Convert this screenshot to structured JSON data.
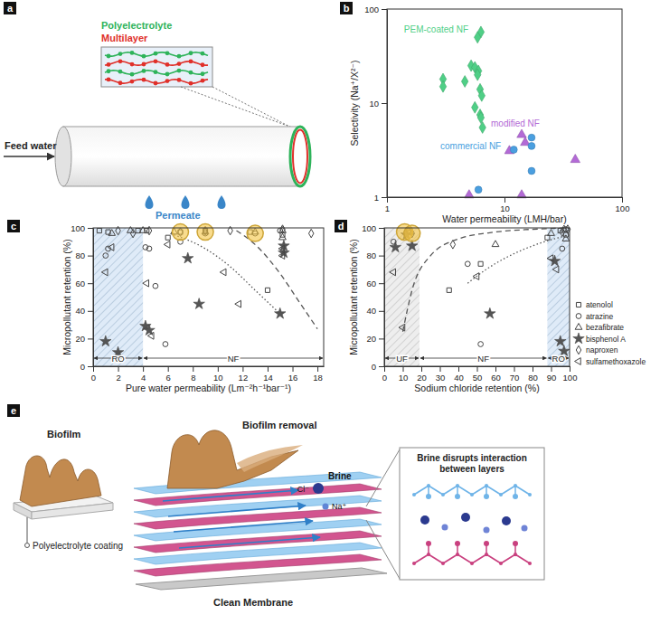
{
  "diagrams": {
    "a": {
      "label": "a",
      "inset": [
        "Polyelectrolyte",
        "Multilayer"
      ],
      "feed": "Feed water",
      "permeate": "Permeate"
    },
    "e": {
      "label": "e",
      "biofilm": "Biofilm",
      "coating": "Polyelectrolyte coating",
      "removal": "Biofilm removal",
      "brine": "Brine",
      "chloride": "Cl⁻",
      "sodium": "Na⁺",
      "clean": "Clean Membrane",
      "box_title": [
        "Brine disrupts interaction",
        "between layers"
      ]
    }
  },
  "chart_data": [
    {
      "panel_label": "b",
      "type": "scatter",
      "log": true,
      "x_label": "Water permeability (LMH/bar)",
      "y_label": "Selectivity (Na⁺/X²⁻)",
      "xlim": [
        1,
        100
      ],
      "ylim": [
        1,
        100
      ],
      "xticks": [
        1,
        10,
        100
      ],
      "yticks": [
        1,
        10,
        100
      ],
      "series": [
        {
          "name": "PEM-coated NF",
          "color": "#4fcf86",
          "marker": "diamond",
          "x": [
            6.3,
            5.9,
            5.2,
            5.6,
            6.0,
            3.0,
            3.0,
            4.6,
            6.2,
            6.4,
            5.6,
            6.2,
            6.3,
            6.5,
            5.9
          ],
          "values": [
            57,
            50,
            25,
            24,
            22,
            18,
            15,
            17,
            14,
            12,
            9,
            7.5,
            7,
            5.5,
            20
          ]
        },
        {
          "name": "modified NF",
          "color": "#b36ad6",
          "marker": "triangle",
          "x": [
            5,
            11,
            14,
            15,
            14,
            40
          ],
          "values": [
            1.05,
            3.1,
            4.6,
            3.8,
            1.05,
            2.5
          ]
        },
        {
          "name": "commercial NF",
          "color": "#4a9fe0",
          "marker": "circle",
          "x": [
            6,
            17,
            17,
            17,
            12
          ],
          "values": [
            1.2,
            1.9,
            3.5,
            4.3,
            3.2
          ]
        }
      ]
    },
    {
      "panel_label": "c",
      "type": "scatter",
      "x_label": "Pure water permeability (Lm⁻²h⁻¹bar⁻¹)",
      "y_label": "Micropollutant retention (%)",
      "xlim": [
        0,
        18.5
      ],
      "ylim": [
        0,
        100
      ],
      "xticks": [
        0,
        2,
        4,
        6,
        8,
        10,
        12,
        14,
        16,
        18
      ],
      "yticks": [
        0,
        20,
        40,
        60,
        80,
        100
      ],
      "regions": [
        {
          "label": "RO",
          "x": [
            0,
            4
          ],
          "color": "#b8d4f0"
        },
        {
          "label": "NF",
          "x": [
            4,
            18.5
          ]
        }
      ],
      "highlights": {
        "color": "#f5c542",
        "x": [
          7,
          9,
          13
        ],
        "values": [
          97,
          97,
          96
        ]
      },
      "series": [
        {
          "name": "atenolol",
          "color": "#444444",
          "marker": "open-square",
          "x": [
            0.5,
            1.2,
            3.6,
            4.3,
            6,
            7,
            9,
            12.6,
            14,
            15.2
          ],
          "values": [
            98,
            97,
            98,
            98,
            93,
            97,
            98,
            97,
            55,
            95
          ]
        },
        {
          "name": "atrazine",
          "color": "#444444",
          "marker": "open-circle",
          "x": [
            1,
            1.2,
            4.2,
            4.5,
            5,
            5.8,
            7,
            9,
            13,
            15
          ],
          "values": [
            80,
            85,
            86,
            85,
            58,
            16,
            90,
            96,
            96,
            98
          ]
        },
        {
          "name": "bezafibrate",
          "color": "#444444",
          "marker": "open-triangle",
          "x": [
            1.5,
            3,
            4,
            6.5,
            9,
            13,
            15.2,
            15.2
          ],
          "values": [
            96,
            98,
            98,
            97,
            97,
            97,
            98,
            93
          ]
        },
        {
          "name": "bisphenol A",
          "color": "#555555",
          "marker": "star",
          "x": [
            1,
            2,
            4.2,
            4.5,
            7.6,
            8.5,
            15,
            15.3,
            15.3
          ],
          "values": [
            18,
            10,
            29,
            26,
            78,
            45,
            38,
            82,
            87
          ]
        },
        {
          "name": "naproxen",
          "color": "#444444",
          "marker": "open-diamond",
          "x": [
            2,
            3.2,
            4.5,
            7,
            9,
            11,
            15.2,
            17.5
          ],
          "values": [
            98,
            96,
            98,
            97,
            98,
            98,
            99,
            96
          ]
        },
        {
          "name": "sulfamethoxazole",
          "color": "#444444",
          "marker": "open-triangle-left",
          "x": [
            1,
            1.5,
            4.3,
            4.7,
            6,
            10.5,
            11.7,
            15.2,
            15.2
          ],
          "values": [
            68,
            86,
            60,
            22,
            88,
            68,
            45,
            80,
            85
          ]
        },
        {
          "type": "line",
          "line_style": "dotted",
          "color": "#555555",
          "x": [
            6.5,
            9,
            11,
            13,
            15
          ],
          "values": [
            95,
            85,
            72,
            55,
            38
          ]
        },
        {
          "type": "line",
          "line_style": "dashed",
          "color": "#555555",
          "x": [
            11.5,
            13,
            15,
            16.5,
            18
          ],
          "values": [
            98,
            88,
            67,
            47,
            27
          ]
        }
      ]
    },
    {
      "panel_label": "d",
      "type": "scatter",
      "legend": "right",
      "x_label": "Sodium chloride retention (%)",
      "y_label": "Micropollutant retention (%)",
      "xlim": [
        0,
        100
      ],
      "ylim": [
        0,
        100
      ],
      "xticks": [
        0,
        10,
        20,
        30,
        40,
        50,
        60,
        70,
        80,
        90,
        100
      ],
      "yticks": [
        0,
        20,
        40,
        60,
        80,
        100
      ],
      "regions": [
        {
          "label": "UF",
          "x": [
            0,
            19
          ],
          "color": "#d9d9d9"
        },
        {
          "label": "NF",
          "x": [
            19,
            88
          ]
        },
        {
          "label": "RO",
          "x": [
            88,
            100
          ],
          "color": "#b8d4f0"
        }
      ],
      "highlights": {
        "color": "#f5c542",
        "x": [
          11,
          15
        ],
        "values": [
          97,
          96
        ]
      },
      "series": [
        {
          "name": "atenolol",
          "color": "#444444",
          "marker": "open-square",
          "x": [
            13,
            35,
            52,
            88,
            95,
            98
          ],
          "values": [
            97,
            55,
            74,
            93,
            98,
            95
          ]
        },
        {
          "name": "atrazine",
          "color": "#444444",
          "marker": "open-circle",
          "x": [
            5,
            13,
            45,
            52,
            96,
            98
          ],
          "values": [
            90,
            98,
            74,
            16,
            85,
            99
          ]
        },
        {
          "name": "bezafibrate",
          "color": "#444444",
          "marker": "open-triangle",
          "x": [
            14,
            60,
            90,
            97,
            98
          ],
          "values": [
            97,
            88,
            96,
            99,
            92
          ]
        },
        {
          "name": "bisphenol A",
          "color": "#555555",
          "marker": "star",
          "x": [
            6,
            12,
            15,
            57,
            92,
            95,
            97
          ],
          "values": [
            86,
            95,
            87,
            38,
            76,
            18,
            11
          ]
        },
        {
          "name": "naproxen",
          "color": "#444444",
          "marker": "open-diamond",
          "x": [
            13,
            15,
            37,
            96,
            99
          ],
          "values": [
            98,
            96,
            88,
            97,
            99
          ]
        },
        {
          "name": "sulfamethoxazole",
          "color": "#444444",
          "marker": "open-triangle-left",
          "x": [
            5,
            10,
            14,
            50,
            90,
            93
          ],
          "values": [
            68,
            28,
            97,
            65,
            78,
            70
          ]
        },
        {
          "type": "line",
          "line_style": "dashed",
          "color": "#555555",
          "x": [
            10,
            15,
            25,
            40,
            60,
            80,
            100
          ],
          "values": [
            25,
            55,
            80,
            92,
            97,
            99,
            100
          ]
        },
        {
          "type": "line",
          "line_style": "dotted",
          "color": "#555555",
          "x": [
            45,
            55,
            65,
            80,
            100
          ],
          "values": [
            60,
            70,
            78,
            87,
            95
          ]
        }
      ]
    }
  ]
}
